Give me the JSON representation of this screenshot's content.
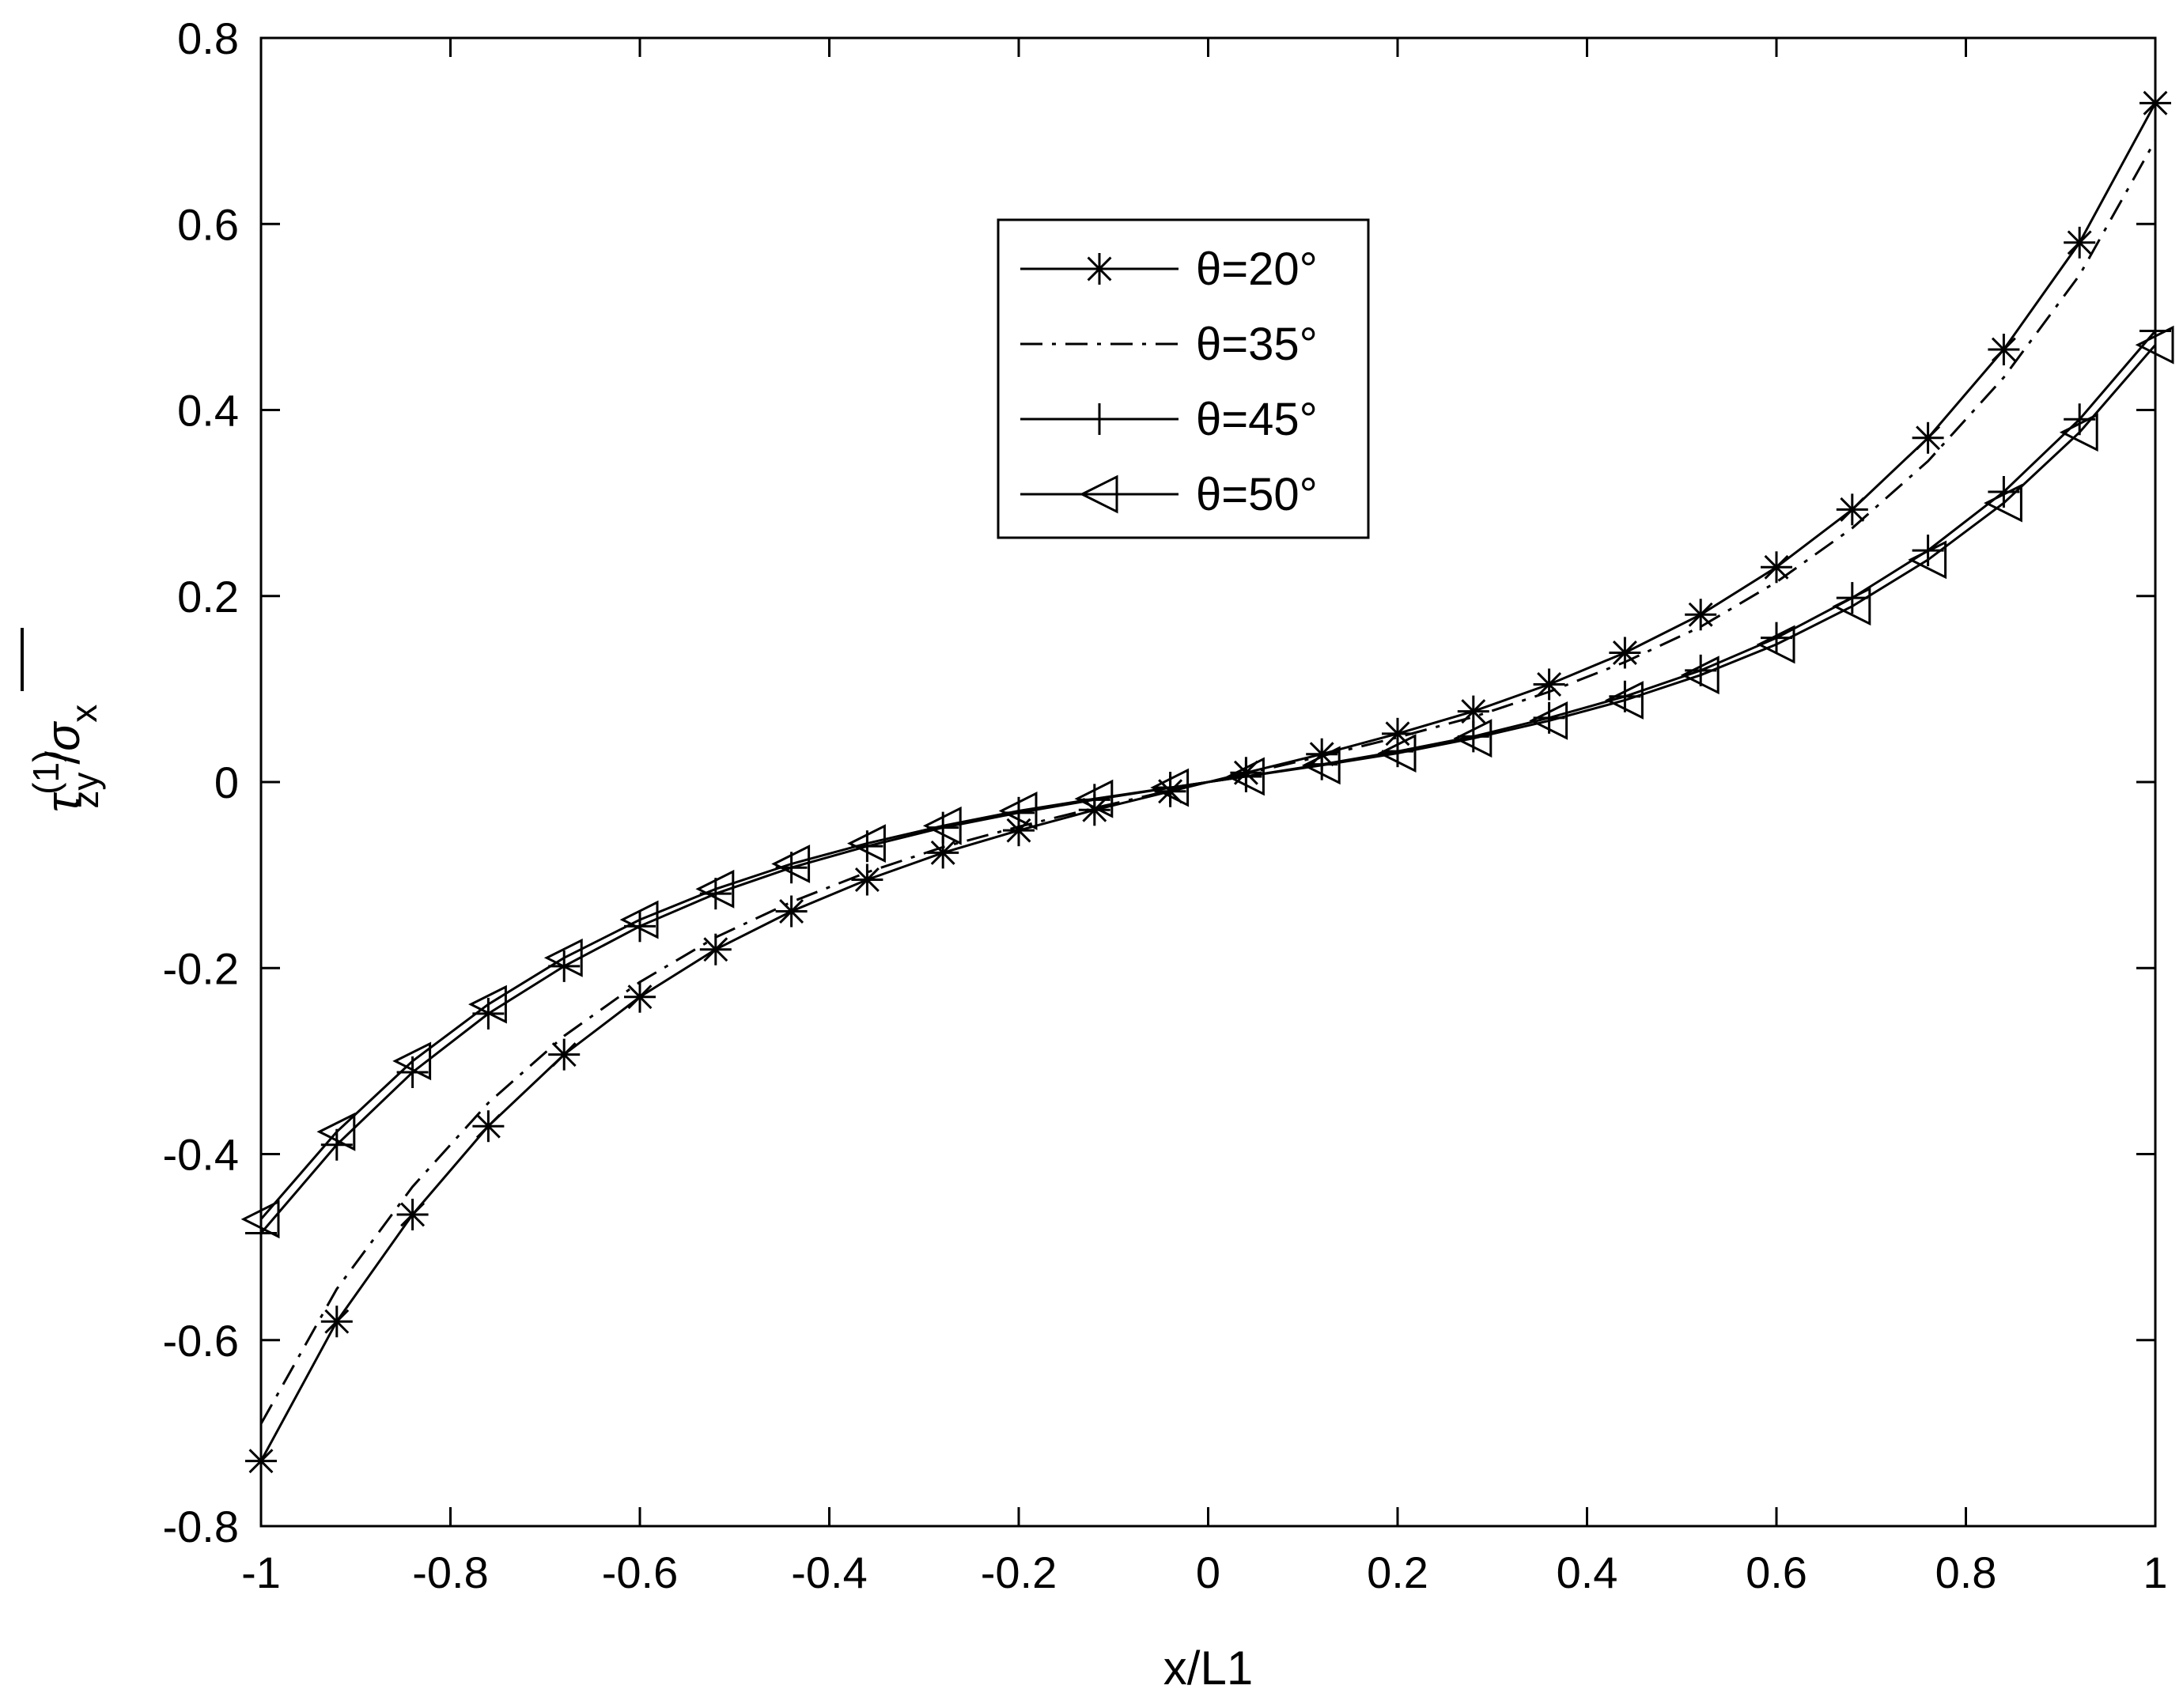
{
  "chart_data": {
    "type": "line",
    "xlabel": "x/L1",
    "ylabel": {
      "base": "τ",
      "sup": "(1)",
      "sub": "zy",
      "slash": "/",
      "sigma": "σ",
      "sigma_sub": "x"
    },
    "xlim": [
      -1,
      1
    ],
    "ylim": [
      -0.8,
      0.8
    ],
    "xticks": [
      -1,
      -0.8,
      -0.6,
      -0.4,
      -0.2,
      0,
      0.2,
      0.4,
      0.6,
      0.8,
      1
    ],
    "xtick_labels": [
      "-1",
      "-0.8",
      "-0.6",
      "-0.4",
      "-0.2",
      "0",
      "0.2",
      "0.4",
      "0.6",
      "0.8",
      "1"
    ],
    "yticks": [
      -0.8,
      -0.6,
      -0.4,
      -0.2,
      0,
      0.2,
      0.4,
      0.6,
      0.8
    ],
    "ytick_labels": [
      "-0.8",
      "-0.6",
      "-0.4",
      "-0.2",
      "0",
      "0.2",
      "0.4",
      "0.6",
      "0.8"
    ],
    "grid": false,
    "legend_position": "upper-center",
    "x": [
      -1,
      -0.92,
      -0.84,
      -0.76,
      -0.68,
      -0.6,
      -0.52,
      -0.44,
      -0.36,
      -0.28,
      -0.2,
      -0.12,
      -0.04,
      0.04,
      0.12,
      0.2,
      0.28,
      0.36,
      0.44,
      0.52,
      0.6,
      0.68,
      0.76,
      0.84,
      0.92,
      1
    ],
    "series": [
      {
        "name": "θ=20°",
        "line_style": "solid",
        "marker": "asterisk",
        "values": [
          -0.73,
          -0.58,
          -0.465,
          -0.37,
          -0.293,
          -0.231,
          -0.18,
          -0.139,
          -0.105,
          -0.076,
          -0.052,
          -0.03,
          -0.01,
          0.01,
          0.03,
          0.052,
          0.076,
          0.105,
          0.139,
          0.18,
          0.231,
          0.293,
          0.37,
          0.465,
          0.58,
          0.73
        ]
      },
      {
        "name": "θ=35°",
        "line_style": "dashdot",
        "marker": "none",
        "values": [
          -0.69,
          -0.545,
          -0.435,
          -0.345,
          -0.273,
          -0.215,
          -0.167,
          -0.129,
          -0.097,
          -0.07,
          -0.048,
          -0.028,
          -0.009,
          0.009,
          0.028,
          0.048,
          0.07,
          0.097,
          0.129,
          0.167,
          0.215,
          0.273,
          0.345,
          0.435,
          0.545,
          0.69
        ]
      },
      {
        "name": "θ=45°",
        "line_style": "solid",
        "marker": "plus",
        "values": [
          -0.485,
          -0.39,
          -0.312,
          -0.249,
          -0.198,
          -0.155,
          -0.12,
          -0.092,
          -0.069,
          -0.049,
          -0.033,
          -0.019,
          -0.006,
          0.006,
          0.019,
          0.033,
          0.049,
          0.069,
          0.092,
          0.12,
          0.155,
          0.198,
          0.249,
          0.312,
          0.39,
          0.485
        ]
      },
      {
        "name": "θ=50°",
        "line_style": "solid",
        "marker": "triangle-left",
        "values": [
          -0.47,
          -0.376,
          -0.3,
          -0.239,
          -0.189,
          -0.148,
          -0.115,
          -0.088,
          -0.066,
          -0.047,
          -0.031,
          -0.018,
          -0.006,
          0.006,
          0.018,
          0.031,
          0.047,
          0.066,
          0.088,
          0.115,
          0.148,
          0.189,
          0.239,
          0.3,
          0.376,
          0.47
        ]
      }
    ]
  }
}
